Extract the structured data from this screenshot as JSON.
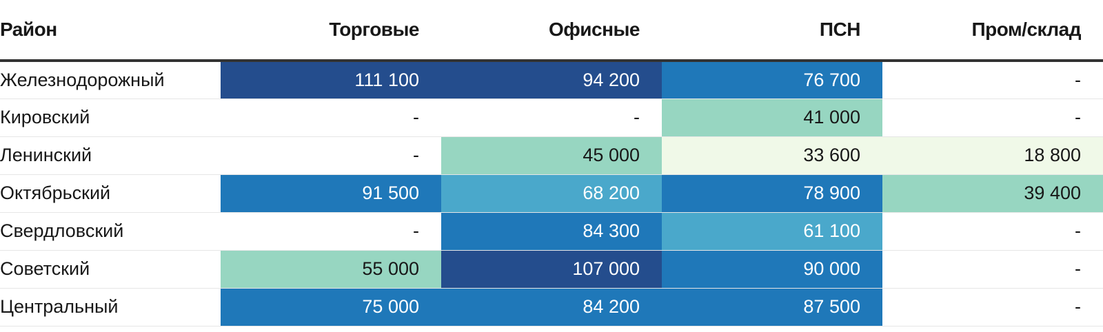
{
  "colors": {
    "level_1": "#f0f9e8",
    "level_2": "#97d6c1",
    "level_3": "#4aa8cb",
    "level_4": "#1f78b9",
    "level_5": "#244d8d",
    "text_dark": "#181818",
    "text_light": "#ffffff"
  },
  "chart_data": {
    "type": "table",
    "columns": [
      "Район",
      "Торговые",
      "Офисные",
      "ПСН",
      "Пром/склад"
    ],
    "rows": [
      {
        "district": "Железнодорожный",
        "values": [
          "111 100",
          "94 200",
          "76 700",
          "-"
        ],
        "levels": [
          5,
          5,
          4,
          0
        ]
      },
      {
        "district": "Кировский",
        "values": [
          "-",
          "-",
          "41 000",
          "-"
        ],
        "levels": [
          0,
          0,
          2,
          0
        ]
      },
      {
        "district": "Ленинский",
        "values": [
          "-",
          "45 000",
          "33 600",
          "18 800"
        ],
        "levels": [
          0,
          2,
          1,
          1
        ]
      },
      {
        "district": "Октябрьский",
        "values": [
          "91 500",
          "68 200",
          "78 900",
          "39 400"
        ],
        "levels": [
          4,
          3,
          4,
          2
        ]
      },
      {
        "district": "Свердловский",
        "values": [
          "-",
          "84 300",
          "61 100",
          "-"
        ],
        "levels": [
          0,
          4,
          3,
          0
        ]
      },
      {
        "district": "Советский",
        "values": [
          "55 000",
          "107 000",
          "90 000",
          "-"
        ],
        "levels": [
          2,
          5,
          4,
          0
        ]
      },
      {
        "district": "Центральный",
        "values": [
          "75 000",
          "84 200",
          "87 500",
          "-"
        ],
        "levels": [
          4,
          4,
          4,
          0
        ]
      }
    ]
  }
}
